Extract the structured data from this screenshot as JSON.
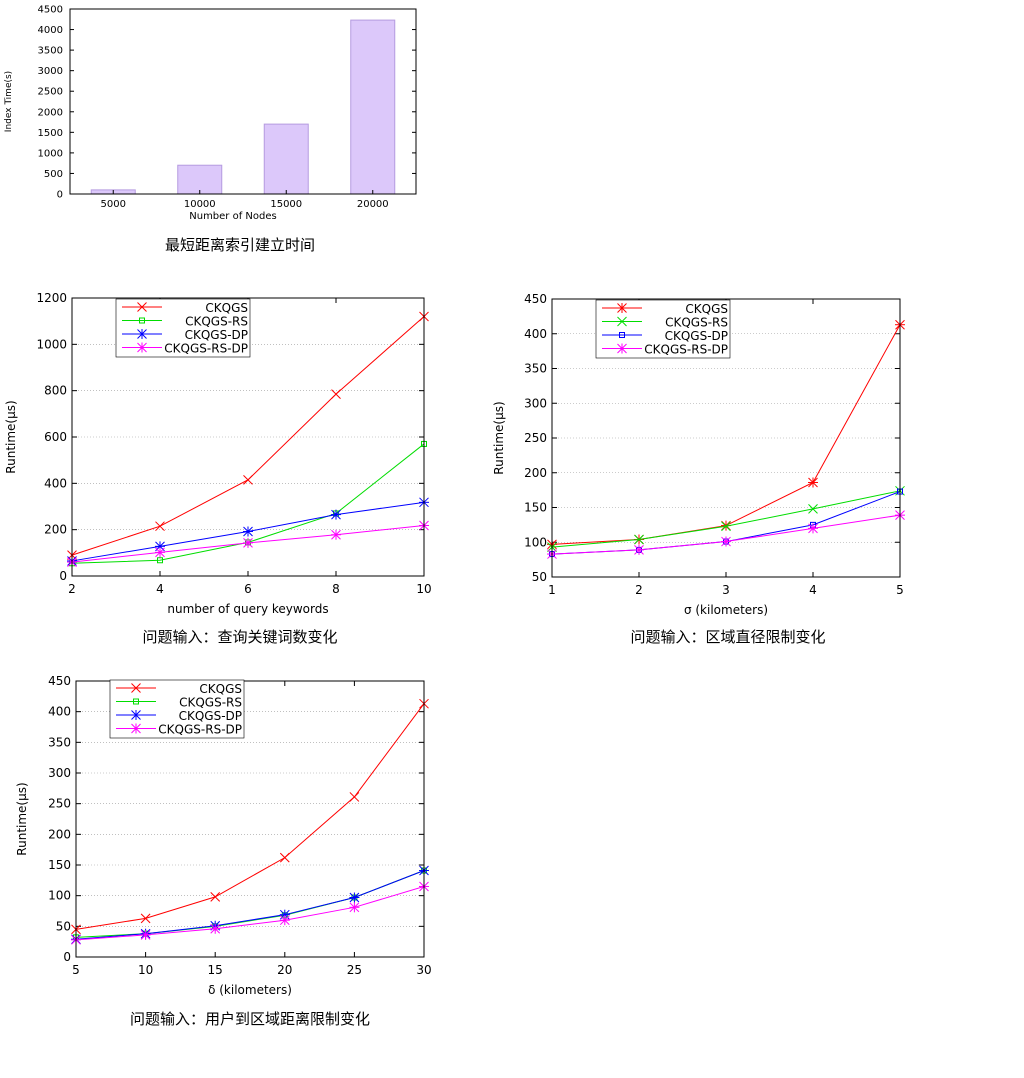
{
  "chart_data": [
    {
      "type": "bar",
      "categories": [
        "5000",
        "10000",
        "15000",
        "20000"
      ],
      "values": [
        100,
        700,
        1700,
        4230
      ],
      "xlabel": "Number of Nodes",
      "ylabel": "Index Time(s)",
      "ylim": [
        0,
        4500
      ],
      "yticks": [
        "0",
        "500",
        "1000",
        "1500",
        "2000",
        "2500",
        "3000",
        "3500",
        "4000",
        "4500"
      ],
      "bar_color": "#dcc8fa",
      "caption": "最短距离索引建立时间"
    },
    {
      "type": "line",
      "x": [
        2,
        4,
        6,
        8,
        10
      ],
      "xticks": [
        "2",
        "4",
        "6",
        "8",
        "10"
      ],
      "yticks": [
        "0",
        "200",
        "400",
        "600",
        "800",
        "1000",
        "1200"
      ],
      "xlim": [
        2,
        10
      ],
      "ylim": [
        0,
        1200
      ],
      "xlabel": "number of query keywords",
      "ylabel": "Runtime(μs)",
      "grid": true,
      "legend_position": "top-left",
      "series": [
        {
          "name": "CKQGS",
          "color": "#ff0000",
          "marker": "x",
          "values": [
            90,
            215,
            415,
            785,
            1120
          ]
        },
        {
          "name": "CKQGS-RS",
          "color": "#00dd00",
          "marker": "square",
          "values": [
            55,
            68,
            145,
            270,
            570
          ]
        },
        {
          "name": "CKQGS-DP",
          "color": "#0000ff",
          "marker": "star",
          "values": [
            65,
            128,
            192,
            265,
            318
          ]
        },
        {
          "name": "CKQGS-RS-DP",
          "color": "#ff00ff",
          "marker": "star",
          "values": [
            60,
            102,
            143,
            178,
            218
          ]
        }
      ],
      "caption": "问题输入：查询关键词数变化"
    },
    {
      "type": "line",
      "x": [
        1,
        2,
        3,
        4,
        5
      ],
      "xticks": [
        "1",
        "2",
        "3",
        "4",
        "5"
      ],
      "yticks": [
        "50",
        "100",
        "150",
        "200",
        "250",
        "300",
        "350",
        "400",
        "450"
      ],
      "xlim": [
        1,
        5
      ],
      "ylim": [
        50,
        450
      ],
      "xlabel": "σ (kilometers)",
      "ylabel": "Runtime(μs)",
      "grid": true,
      "legend_position": "top-left",
      "series": [
        {
          "name": "CKQGS",
          "color": "#ff0000",
          "marker": "star",
          "values": [
            97,
            104,
            124,
            186,
            413
          ]
        },
        {
          "name": "CKQGS-RS",
          "color": "#00dd00",
          "marker": "x",
          "values": [
            93,
            104,
            123,
            148,
            174
          ]
        },
        {
          "name": "CKQGS-DP",
          "color": "#0000ff",
          "marker": "square",
          "values": [
            83,
            89,
            101,
            125,
            173
          ]
        },
        {
          "name": "CKQGS-RS-DP",
          "color": "#ff00ff",
          "marker": "star",
          "values": [
            83,
            89,
            101,
            120,
            139
          ]
        }
      ],
      "caption": "问题输入：区域直径限制变化"
    },
    {
      "type": "line",
      "x": [
        5,
        10,
        15,
        20,
        25,
        30
      ],
      "xticks": [
        "5",
        "10",
        "15",
        "20",
        "25",
        "30"
      ],
      "yticks": [
        "0",
        "50",
        "100",
        "150",
        "200",
        "250",
        "300",
        "350",
        "400",
        "450"
      ],
      "xlim": [
        5,
        30
      ],
      "ylim": [
        0,
        450
      ],
      "xlabel": "δ (kilometers)",
      "ylabel": "Runtime(μs)",
      "grid": true,
      "legend_position": "top-left",
      "series": [
        {
          "name": "CKQGS",
          "color": "#ff0000",
          "marker": "x",
          "values": [
            45,
            63,
            98,
            162,
            261,
            413
          ]
        },
        {
          "name": "CKQGS-RS",
          "color": "#00dd00",
          "marker": "square",
          "values": [
            32,
            38,
            50,
            68,
            97,
            141
          ]
        },
        {
          "name": "CKQGS-DP",
          "color": "#0000ff",
          "marker": "star",
          "values": [
            29,
            38,
            51,
            69,
            97,
            141
          ]
        },
        {
          "name": "CKQGS-RS-DP",
          "color": "#ff00ff",
          "marker": "star",
          "values": [
            28,
            36,
            46,
            60,
            81,
            115
          ]
        }
      ],
      "caption": "问题输入：用户到区域距离限制变化"
    }
  ]
}
